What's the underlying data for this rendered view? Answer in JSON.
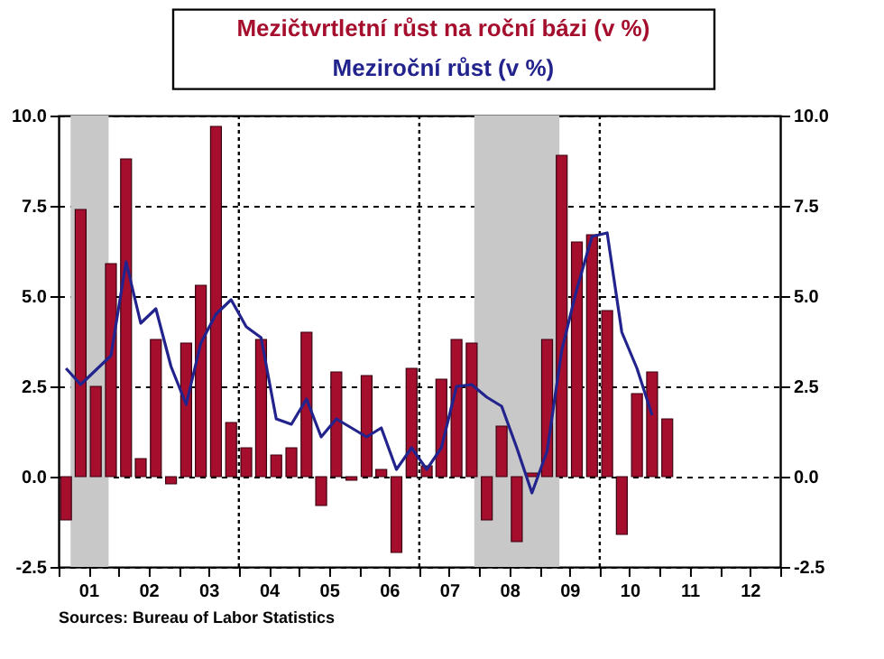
{
  "chart_data": {
    "type": "bar",
    "annotations": [
      "Sources:  Bureau of Labor Statistics"
    ],
    "x": [
      "2001-02-15",
      "2001-05-15",
      "2001-08-15",
      "2001-11-15",
      "2002-02-15",
      "2002-05-15",
      "2002-08-15",
      "2002-11-15",
      "2003-02-15",
      "2003-05-15",
      "2003-08-15",
      "2003-11-15",
      "2004-02-15",
      "2004-05-15",
      "2004-08-15",
      "2004-11-15",
      "2005-02-15",
      "2005-05-15",
      "2005-08-15",
      "2005-11-15",
      "2006-02-15",
      "2006-05-15",
      "2006-08-15",
      "2006-11-15",
      "2007-02-15",
      "2007-05-15",
      "2007-08-15",
      "2007-11-15",
      "2008-02-15",
      "2008-05-15",
      "2008-08-15",
      "2008-11-15",
      "2009-02-15",
      "2009-05-15",
      "2009-08-15",
      "2009-11-15",
      "2010-02-15",
      "2010-05-15",
      "2010-08-15",
      "2010-11-15",
      "2011-02-15"
    ],
    "series": [
      {
        "name": "Mezičtvrtletní růst na roční bázi (v %)",
        "color": "#a50f2d",
        "values": [
          -1.2,
          7.4,
          2.5,
          5.9,
          8.8,
          0.5,
          3.8,
          -0.2,
          3.7,
          5.3,
          9.7,
          1.5,
          0.8,
          3.8,
          0.6,
          0.8,
          4.0,
          -0.8,
          2.9,
          -0.1,
          2.8,
          0.2,
          -2.1,
          3.0,
          0.3,
          2.7,
          3.8,
          3.7,
          -1.2,
          1.4,
          -1.8,
          0.1,
          3.8,
          8.9,
          6.5,
          6.7,
          4.6,
          -1.6,
          2.3,
          2.9,
          1.6
        ]
      },
      {
        "name": "Meziroční růst (v %)",
        "type": "line",
        "color": "#23238e",
        "x": [
          "2001-02-15",
          "2001-05-15",
          "2001-08-15",
          "2001-11-15",
          "2002-02-15",
          "2002-05-15",
          "2002-08-15",
          "2002-11-15",
          "2003-02-15",
          "2003-05-15",
          "2003-08-15",
          "2003-11-15",
          "2004-02-15",
          "2004-05-15",
          "2004-08-15",
          "2004-11-15",
          "2005-02-15",
          "2005-05-15",
          "2005-08-15",
          "2005-11-15",
          "2006-02-15",
          "2006-05-15",
          "2006-08-15",
          "2006-11-15",
          "2007-02-15",
          "2007-05-15",
          "2007-08-15",
          "2007-11-15",
          "2008-02-15",
          "2008-05-15",
          "2008-08-15",
          "2008-11-15",
          "2009-02-15",
          "2009-05-15",
          "2009-08-15",
          "2009-11-15",
          "2010-02-15",
          "2010-05-15",
          "2010-08-15",
          "2010-11-15"
        ],
        "values": [
          3.0,
          2.55,
          2.95,
          3.35,
          5.95,
          4.25,
          4.65,
          3.05,
          2.0,
          3.7,
          4.5,
          4.9,
          4.15,
          3.85,
          1.6,
          1.45,
          2.15,
          1.1,
          1.6,
          1.35,
          1.1,
          1.35,
          0.2,
          0.8,
          0.2,
          0.8,
          2.5,
          2.55,
          2.2,
          1.95,
          0.8,
          -0.45,
          0.7,
          3.5,
          5.2,
          6.65,
          6.75,
          4.0,
          3.0,
          1.7
        ]
      }
    ],
    "xlim": [
      "2001-01-01",
      "2013-01-01"
    ],
    "xticks": [
      {
        "value": "2001-01-01",
        "label": null
      },
      {
        "value": "2001-07-01",
        "label": "01"
      },
      {
        "value": "2002-01-01",
        "label": null
      },
      {
        "value": "2002-07-01",
        "label": "02"
      },
      {
        "value": "2003-01-01",
        "label": null
      },
      {
        "value": "2003-07-01",
        "label": "03"
      },
      {
        "value": "2004-01-01",
        "label": null
      },
      {
        "value": "2004-07-01",
        "label": "04"
      },
      {
        "value": "2005-01-01",
        "label": null
      },
      {
        "value": "2005-07-01",
        "label": "05"
      },
      {
        "value": "2006-01-01",
        "label": null
      },
      {
        "value": "2006-07-01",
        "label": "06"
      },
      {
        "value": "2007-01-01",
        "label": null
      },
      {
        "value": "2007-07-01",
        "label": "07"
      },
      {
        "value": "2008-01-01",
        "label": null
      },
      {
        "value": "2008-07-01",
        "label": "08"
      },
      {
        "value": "2009-01-01",
        "label": null
      },
      {
        "value": "2009-07-01",
        "label": "09"
      },
      {
        "value": "2010-01-01",
        "label": null
      },
      {
        "value": "2010-07-01",
        "label": "10"
      },
      {
        "value": "2011-01-01",
        "label": null
      },
      {
        "value": "2011-07-01",
        "label": "11"
      },
      {
        "value": "2012-01-01",
        "label": null
      },
      {
        "value": "2012-07-01",
        "label": "12"
      },
      {
        "value": "2013-01-01",
        "label": null
      }
    ],
    "ylim": [
      -2.5,
      10.0
    ],
    "yticks": [
      {
        "value": -2.5,
        "label": "-2.5"
      },
      {
        "value": 0,
        "label": "0.0"
      },
      {
        "value": 2.5,
        "label": "2.5"
      },
      {
        "value": 5,
        "label": "5.0"
      },
      {
        "value": 7.5,
        "label": "7.5"
      },
      {
        "value": 10,
        "label": "10.0"
      }
    ],
    "y2lim": [
      -2.5,
      10.0
    ],
    "y2ticks": [
      {
        "value": -2.5,
        "label": "-2.5"
      },
      {
        "value": 0,
        "label": "0.0"
      },
      {
        "value": 2.5,
        "label": "2.5"
      },
      {
        "value": 5,
        "label": "5.0"
      },
      {
        "value": 7.5,
        "label": "7.5"
      },
      {
        "value": 10,
        "label": "10.0"
      }
    ],
    "bands": [
      {
        "axis": "x",
        "from": "2001-03-15",
        "to": "2001-11-01",
        "color": "#c8c8c8"
      },
      {
        "axis": "x",
        "from": "2007-12-01",
        "to": "2009-05-01",
        "color": "#c8c8c8"
      }
    ],
    "ref_lines": [
      {
        "axis": "x",
        "value": "2004-01-01",
        "line_style": "dotted",
        "color": "#000000"
      },
      {
        "axis": "x",
        "value": "2007-01-01",
        "line_style": "dotted",
        "color": "#000000"
      },
      {
        "axis": "x",
        "value": "2010-01-01",
        "line_style": "dotted",
        "color": "#000000"
      }
    ],
    "grid": "y",
    "legend": "top",
    "line_style": "solid",
    "marker": "none"
  }
}
